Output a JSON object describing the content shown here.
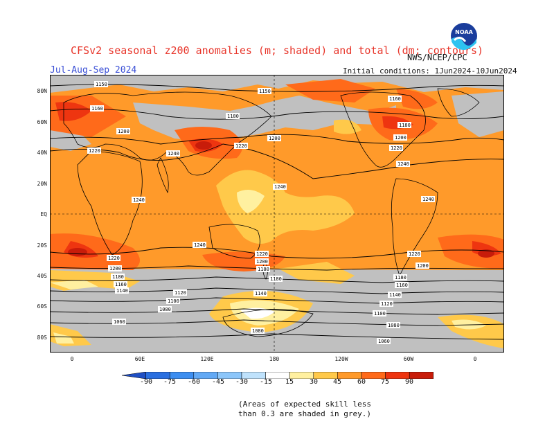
{
  "title": "CFSv2 seasonal z200 anomalies (m; shaded) and total (dm; contours)",
  "period": "Jul-Aug-Sep 2024",
  "source": "NWS/NCEP/CPC",
  "initial_conditions": "Initial conditions: 1Jun2024-10Jun2024",
  "logo_text": "NOAA",
  "lat_labels": [
    "80N",
    "60N",
    "40N",
    "20N",
    "EQ",
    "20S",
    "40S",
    "60S",
    "80S"
  ],
  "lon_labels": [
    "0",
    "60E",
    "120E",
    "180",
    "120W",
    "60W",
    "0"
  ],
  "colorbar": {
    "ticks": [
      "-90",
      "-75",
      "-60",
      "-45",
      "-30",
      "-15",
      "15",
      "30",
      "45",
      "60",
      "75",
      "90"
    ],
    "colors": [
      "#1f4fc4",
      "#2a6fe0",
      "#3d8ef0",
      "#62a9f5",
      "#8cc6fa",
      "#bfe2fc",
      "#ffffff",
      "#fff0a0",
      "#ffc94a",
      "#ff9a2a",
      "#ff6a1a",
      "#ee3510",
      "#c81c0a",
      "#a0100a"
    ]
  },
  "contour_labels": [
    "1150",
    "1160",
    "1180",
    "1200",
    "1220",
    "1240",
    "1140",
    "1120",
    "1100",
    "1080",
    "1060"
  ],
  "note_line1": "(Areas of expected skill less",
  "note_line2": "than 0.3 are shaded in grey.)",
  "colors": {
    "grey_low_skill": "#c0c0c0",
    "title": "#e8362b",
    "period": "#3a4fd6"
  }
}
